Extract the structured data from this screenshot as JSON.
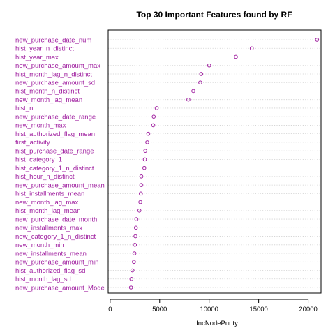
{
  "chart_data": {
    "type": "scatter",
    "title": "Top 30 Important Features found by RF",
    "xlabel": "IncNodePurity",
    "ylabel": "",
    "xlim": [
      -200,
      21300
    ],
    "xticks": [
      0,
      5000,
      10000,
      15000,
      20000
    ],
    "grid": "dotted horizontal lines per category",
    "point_color": "#a020a0",
    "label_color": "#a020a0",
    "categories": [
      "new_purchase_date_num",
      "hist_year_n_distinct",
      "hist_year_max",
      "new_purchase_amount_max",
      "hist_month_lag_n_distinct",
      "new_purchase_amount_sd",
      "hist_month_n_distinct",
      "new_month_lag_mean",
      "hist_n",
      "new_purchase_date_range",
      "new_month_max",
      "hist_authorized_flag_mean",
      "first_activity",
      "hist_purchase_date_range",
      "hist_category_1",
      "hist_category_1_n_distinct",
      "hist_hour_n_distinct",
      "new_purchase_amount_mean",
      "hist_installments_mean",
      "new_month_lag_max",
      "hist_month_lag_mean",
      "new_purchase_date_month",
      "new_installments_max",
      "new_category_1_n_distinct",
      "new_month_min",
      "new_installments_mean",
      "new_purchase_amount_min",
      "hist_authorized_flag_sd",
      "hist_month_lag_sd",
      "new_purchase_amount_Mode"
    ],
    "values": [
      20900,
      14300,
      12700,
      10000,
      9200,
      9100,
      8400,
      7900,
      4700,
      4400,
      4350,
      3850,
      3750,
      3550,
      3500,
      3450,
      3150,
      3150,
      3100,
      3050,
      2950,
      2650,
      2600,
      2550,
      2500,
      2450,
      2400,
      2250,
      2150,
      2100
    ]
  }
}
